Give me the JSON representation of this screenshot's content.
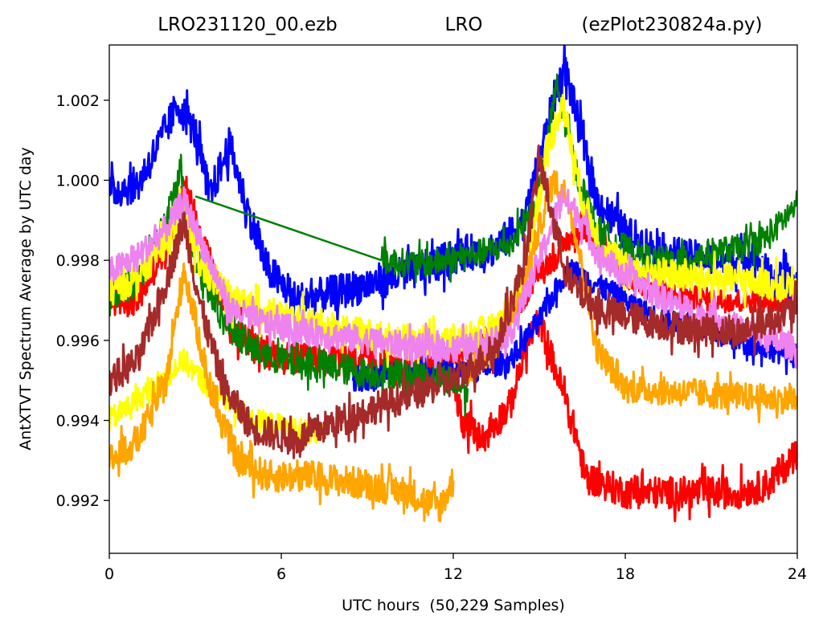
{
  "chart_data": {
    "type": "line",
    "title_parts": [
      "LRO231120_00.ezb",
      "LRO",
      "(ezPlot230824a.py)"
    ],
    "xlabel": "UTC hours  (50,229 Samples)",
    "ylabel": "AntXTVT Spectrum Average by UTC day",
    "xlim": [
      0,
      24
    ],
    "ylim": [
      0.99068,
      1.00338
    ],
    "x_ticks": [
      {
        "value": 0,
        "label": "0"
      },
      {
        "value": 6,
        "label": "6"
      },
      {
        "value": 12,
        "label": "12"
      },
      {
        "value": 18,
        "label": "18"
      },
      {
        "value": 24,
        "label": "24"
      }
    ],
    "y_ticks": [
      {
        "value": 0.992,
        "label": "0.992"
      },
      {
        "value": 0.994,
        "label": "0.994"
      },
      {
        "value": 0.996,
        "label": "0.996"
      },
      {
        "value": 0.998,
        "label": "0.998"
      },
      {
        "value": 1.0,
        "label": "1.000"
      },
      {
        "value": 1.002,
        "label": "1.002"
      }
    ],
    "grid": false,
    "legend": "none",
    "series": [
      {
        "color": "#ff0000",
        "width": 3,
        "jitter": 0.0004,
        "x": [
          0,
          1.0,
          2.0,
          2.6,
          3.3,
          4.2,
          5.5,
          7.0,
          9.0,
          11.0,
          11.9,
          12.3,
          13.0,
          14.0,
          14.6,
          15.0,
          15.7,
          16.3,
          16.6,
          17.3,
          18.0,
          20.0,
          22.0,
          23.0,
          23.5,
          24.0
        ],
        "y": [
          0.997,
          0.997,
          0.9984,
          0.9999,
          0.9985,
          0.9964,
          0.9956,
          0.9955,
          0.9955,
          0.9953,
          0.9955,
          0.994,
          0.9935,
          0.9944,
          0.996,
          0.9965,
          0.995,
          0.9936,
          0.9926,
          0.9924,
          0.9922,
          0.9922,
          0.9922,
          0.9924,
          0.9928,
          0.9932
        ]
      },
      {
        "color": "#ff0000",
        "width": 3,
        "jitter": 0.0003,
        "x": [
          11.9,
          12.5,
          13.5,
          14.0,
          14.5,
          15.0,
          15.5,
          16.0,
          16.6,
          17.0,
          17.5,
          18.0,
          19.0,
          21.0,
          23.0,
          24.0
        ],
        "y": [
          0.9955,
          0.9958,
          0.9962,
          0.9966,
          0.9971,
          0.9978,
          0.998,
          0.9985,
          0.9988,
          0.9985,
          0.998,
          0.9976,
          0.9972,
          0.997,
          0.997,
          0.997
        ]
      },
      {
        "color": "#0000ff",
        "width": 3,
        "jitter": 0.00045,
        "x": [
          0,
          1.0,
          1.8,
          2.4,
          3.0,
          3.5,
          4.2,
          4.8,
          5.5,
          6.5,
          8.0,
          9.5,
          11.0,
          12.5,
          13.5,
          14.5,
          15.0,
          15.5,
          15.9,
          16.5,
          17.0,
          18.0,
          19.0,
          20.0,
          21.0,
          22.0,
          22.5,
          23.0,
          24.0
        ],
        "y": [
          0.9997,
          0.9999,
          1.001,
          1.0019,
          1.0012,
          0.9996,
          1.0009,
          0.9993,
          0.9978,
          0.997,
          0.9972,
          0.9975,
          0.9978,
          0.9982,
          0.9983,
          0.999,
          1.0005,
          1.002,
          1.0028,
          1.001,
          0.9995,
          0.9987,
          0.9983,
          0.9981,
          0.998,
          0.998,
          0.9982,
          0.9976,
          0.9974
        ]
      },
      {
        "color": "#0000ff",
        "width": 3,
        "jitter": 0.0003,
        "x": [
          8.5,
          10.5,
          12.5,
          14.0,
          15.0,
          16.0,
          17.0,
          19.0,
          21.0,
          23.0,
          24.0
        ],
        "y": [
          0.995,
          0.9952,
          0.9952,
          0.9955,
          0.9965,
          0.9978,
          0.9974,
          0.9966,
          0.9962,
          0.9958,
          0.9956
        ]
      },
      {
        "color": "#008000",
        "width": 2.5,
        "jitter": 0.0004,
        "x": [
          0,
          1.0,
          2.0,
          2.5,
          3.0,
          4.0,
          5.0,
          6.0,
          7.0,
          8.0,
          9.0,
          10.0,
          11.0,
          12.0,
          12.5
        ],
        "y": [
          0.997,
          0.9975,
          0.999,
          1.0003,
          0.998,
          0.9965,
          0.9958,
          0.9955,
          0.9954,
          0.9953,
          0.9952,
          0.9952,
          0.9951,
          0.995,
          0.9948
        ]
      },
      {
        "color": "#008000",
        "width": 2.5,
        "jitter": 0,
        "x": [
          3.0,
          9.5
        ],
        "y": [
          0.9996,
          0.998
        ]
      },
      {
        "color": "#008000",
        "width": 2.5,
        "jitter": 0.00035,
        "x": [
          9.5,
          11.0,
          12.5,
          14.0,
          15.0,
          15.6,
          16.3,
          17.0,
          18.0,
          19.0,
          20.0,
          21.0,
          22.0,
          23.0,
          24.0
        ],
        "y": [
          0.998,
          0.9979,
          0.9981,
          0.9984,
          0.9996,
          1.0024,
          1.0002,
          0.9988,
          0.9983,
          0.998,
          0.998,
          0.9982,
          0.9983,
          0.9986,
          0.9994
        ]
      },
      {
        "color": "#ffff00",
        "width": 3,
        "jitter": 0.0004,
        "x": [
          0,
          1.0,
          2.0,
          2.6,
          3.2,
          4.5,
          6.0,
          8.0,
          10.0,
          12.0,
          13.5,
          14.5,
          15.2,
          15.8,
          16.5,
          17.2,
          18.0,
          20.0,
          22.0,
          24.0
        ],
        "y": [
          0.9972,
          0.9976,
          0.9985,
          0.9993,
          0.9978,
          0.9969,
          0.9966,
          0.9963,
          0.996,
          0.996,
          0.9963,
          0.9975,
          1.0005,
          1.002,
          0.9995,
          0.9983,
          0.9978,
          0.9976,
          0.9975,
          0.9973
        ]
      },
      {
        "color": "#ffff00",
        "width": 3,
        "jitter": 0.0003,
        "x": [
          0,
          1.5,
          2.6,
          3.5,
          5.0,
          6.5,
          7.5
        ],
        "y": [
          0.994,
          0.9948,
          0.9955,
          0.9948,
          0.994,
          0.9938,
          0.9936
        ]
      },
      {
        "color": "#ffa500",
        "width": 3,
        "jitter": 0.0004,
        "x": [
          0,
          1.0,
          2.0,
          2.6,
          3.0,
          3.6,
          4.5,
          5.5,
          7.0,
          9.0,
          10.5,
          11.5,
          12.0
        ],
        "y": [
          0.993,
          0.9935,
          0.995,
          0.9978,
          0.9965,
          0.9945,
          0.993,
          0.9926,
          0.9926,
          0.9924,
          0.9922,
          0.9918,
          0.9925
        ]
      },
      {
        "color": "#ffa500",
        "width": 3,
        "jitter": 0.00035,
        "x": [
          12.5,
          13.5,
          14.3,
          15.0,
          15.5,
          16.0,
          16.5,
          17.0,
          18.0,
          20.0,
          22.0,
          24.0
        ],
        "y": [
          0.9952,
          0.9958,
          0.997,
          0.9988,
          1.0,
          0.9996,
          0.9978,
          0.9958,
          0.9948,
          0.9947,
          0.9946,
          0.9945
        ]
      },
      {
        "color": "#ee82ee",
        "width": 3,
        "jitter": 0.00035,
        "x": [
          0,
          1.0,
          2.0,
          2.6,
          3.3,
          4.2,
          5.5,
          7.0,
          9.0,
          11.0,
          12.5,
          14.0,
          15.0,
          15.8,
          16.5,
          17.0,
          18.0,
          20.0,
          22.0,
          24.0
        ],
        "y": [
          0.9977,
          0.9981,
          0.9988,
          0.9995,
          0.9983,
          0.9968,
          0.9964,
          0.9962,
          0.996,
          0.9958,
          0.9958,
          0.9962,
          0.998,
          0.9996,
          0.999,
          0.9982,
          0.9976,
          0.9968,
          0.9963,
          0.9958
        ]
      },
      {
        "color": "#a52a2a",
        "width": 3,
        "jitter": 0.0004,
        "x": [
          0,
          1.0,
          2.0,
          2.6,
          3.2,
          4.0,
          5.0,
          6.5,
          8.0,
          10.0,
          12.0,
          13.5,
          14.5,
          15.0,
          15.5,
          16.0,
          17.0,
          18.0,
          20.0,
          22.0,
          24.0
        ],
        "y": [
          0.995,
          0.9955,
          0.9975,
          0.999,
          0.9968,
          0.9948,
          0.9938,
          0.9935,
          0.994,
          0.9945,
          0.995,
          0.9958,
          0.998,
          1.0005,
          0.999,
          0.9975,
          0.9968,
          0.9966,
          0.9963,
          0.9962,
          0.9968
        ]
      }
    ]
  }
}
